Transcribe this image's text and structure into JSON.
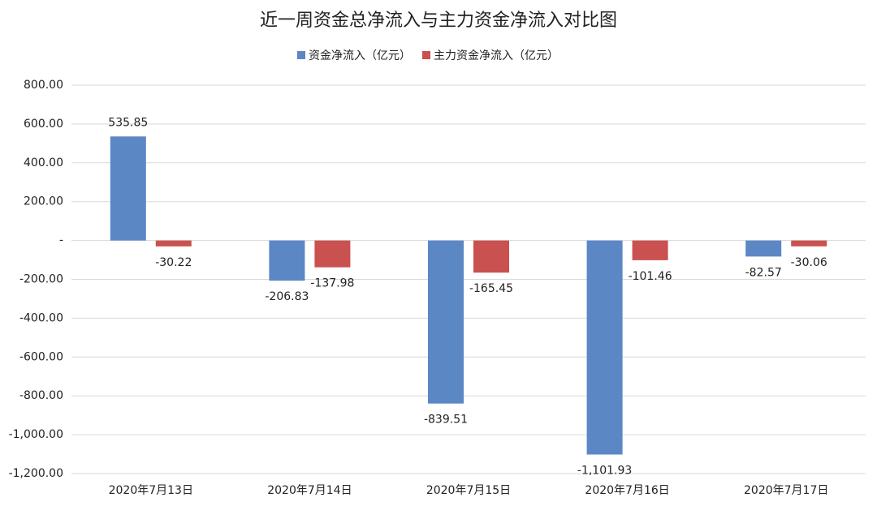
{
  "chart_data": {
    "type": "bar",
    "title": "近一周资金总净流入与主力资金净流入对比图",
    "categories": [
      "2020年7月13日",
      "2020年7月14日",
      "2020年7月15日",
      "2020年7月16日",
      "2020年7月17日"
    ],
    "series": [
      {
        "name": "资金净流入（亿元）",
        "color": "#5b87c5",
        "values": [
          535.85,
          -206.83,
          -839.51,
          -1101.93,
          -82.57
        ],
        "value_labels": [
          "535.85",
          "-206.83",
          "-839.51",
          "-1,101.93",
          "-82.57"
        ]
      },
      {
        "name": "主力资金净流入（亿元）",
        "color": "#c9514f",
        "values": [
          -30.22,
          -137.98,
          -165.45,
          -101.46,
          -30.06
        ],
        "value_labels": [
          "-30.22",
          "-137.98",
          "-165.45",
          "-101.46",
          "-30.06"
        ]
      }
    ],
    "ylim": [
      -1200,
      800
    ],
    "yticks": [
      {
        "value": 800,
        "label": "800.00"
      },
      {
        "value": 600,
        "label": "600.00"
      },
      {
        "value": 400,
        "label": "400.00"
      },
      {
        "value": 200,
        "label": "200.00"
      },
      {
        "value": 0,
        "label": "-"
      },
      {
        "value": -200,
        "label": "-200.00"
      },
      {
        "value": -400,
        "label": "-400.00"
      },
      {
        "value": -600,
        "label": "-600.00"
      },
      {
        "value": -800,
        "label": "-800.00"
      },
      {
        "value": -1000,
        "label": "-1,000.00"
      },
      {
        "value": -1200,
        "label": "-1,200.00"
      }
    ],
    "grid": true,
    "legend": "top"
  }
}
